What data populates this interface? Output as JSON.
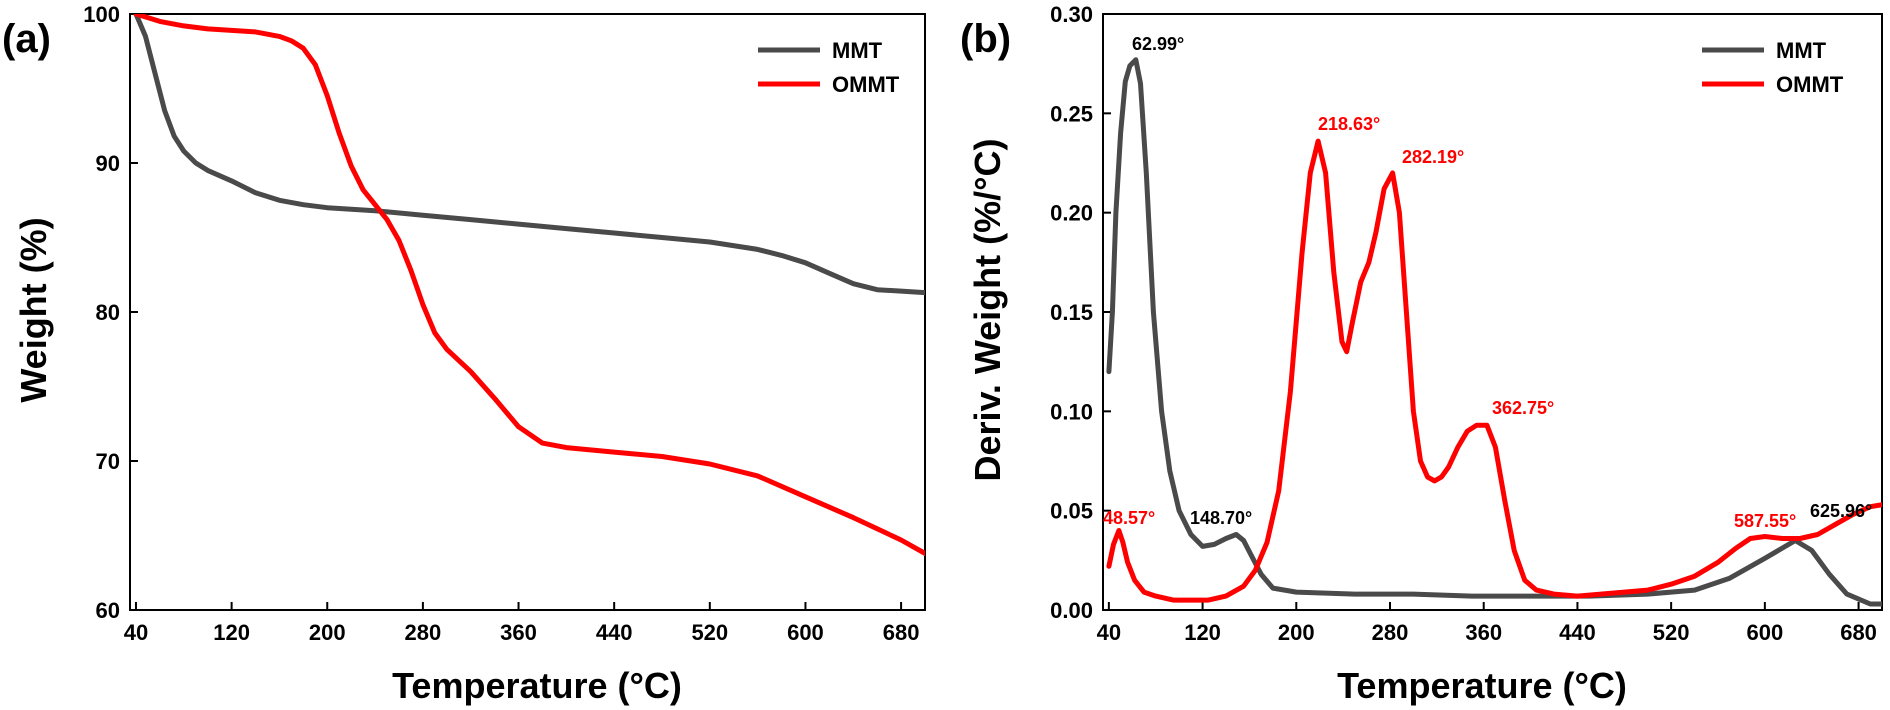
{
  "colors": {
    "MMT": "#4a4a4a",
    "OMMT": "#ff0000",
    "axis": "#000000"
  },
  "chart_data": [
    {
      "type": "line",
      "panel": "(a)",
      "title": "",
      "xlabel": "Temperature (°C)",
      "ylabel": "Weight (%)",
      "xlim": [
        35,
        700
      ],
      "ylim": [
        60,
        100
      ],
      "xticks": [
        40,
        120,
        200,
        280,
        360,
        440,
        520,
        600,
        680
      ],
      "yticks": [
        60,
        70,
        80,
        90,
        100
      ],
      "grid": false,
      "legend": "top-right",
      "series": [
        {
          "name": "MMT",
          "color": "#4a4a4a",
          "x": [
            40,
            48,
            56,
            64,
            72,
            80,
            90,
            100,
            120,
            140,
            160,
            180,
            200,
            240,
            280,
            320,
            360,
            400,
            440,
            480,
            520,
            560,
            580,
            600,
            620,
            640,
            660,
            680,
            700
          ],
          "y": [
            100,
            98.5,
            96,
            93.5,
            91.8,
            90.8,
            90.0,
            89.5,
            88.8,
            88.0,
            87.5,
            87.2,
            87.0,
            86.8,
            86.5,
            86.2,
            85.9,
            85.6,
            85.3,
            85.0,
            84.7,
            84.2,
            83.8,
            83.3,
            82.6,
            81.9,
            81.5,
            81.4,
            81.3
          ]
        },
        {
          "name": "OMMT",
          "color": "#ff0000",
          "x": [
            40,
            60,
            80,
            100,
            120,
            140,
            160,
            170,
            180,
            190,
            200,
            210,
            220,
            230,
            240,
            250,
            260,
            270,
            280,
            290,
            300,
            320,
            340,
            360,
            380,
            400,
            440,
            480,
            520,
            560,
            600,
            640,
            680,
            700
          ],
          "y": [
            100,
            99.5,
            99.2,
            99.0,
            98.9,
            98.8,
            98.5,
            98.2,
            97.7,
            96.6,
            94.5,
            92.0,
            89.8,
            88.2,
            87.2,
            86.2,
            84.8,
            82.8,
            80.5,
            78.6,
            77.5,
            76.0,
            74.2,
            72.3,
            71.2,
            70.9,
            70.6,
            70.3,
            69.8,
            69.0,
            67.6,
            66.2,
            64.7,
            63.8
          ]
        }
      ]
    },
    {
      "type": "line",
      "panel": "(b)",
      "title": "",
      "xlabel": "Temperature (°C)",
      "ylabel": "Deriv. Weight (%/°C)",
      "xlim": [
        35,
        700
      ],
      "ylim": [
        0,
        0.3
      ],
      "xticks": [
        40,
        120,
        200,
        280,
        360,
        440,
        520,
        600,
        680
      ],
      "yticks": [
        0.0,
        0.05,
        0.1,
        0.15,
        0.2,
        0.25,
        0.3
      ],
      "ytick_labels": [
        "0.00",
        "0.05",
        "0.10",
        "0.15",
        "0.20",
        "0.25",
        "0.30"
      ],
      "grid": false,
      "legend": "top-right",
      "series": [
        {
          "name": "MMT",
          "color": "#4a4a4a",
          "x": [
            40,
            43,
            46,
            50,
            54,
            58,
            62.99,
            67,
            72,
            78,
            85,
            92,
            100,
            110,
            120,
            130,
            140,
            148.7,
            155,
            162,
            170,
            180,
            200,
            250,
            300,
            350,
            400,
            450,
            500,
            540,
            570,
            600,
            625.96,
            640,
            655,
            670,
            690,
            700
          ],
          "y": [
            0.12,
            0.15,
            0.2,
            0.24,
            0.266,
            0.274,
            0.277,
            0.265,
            0.22,
            0.15,
            0.1,
            0.07,
            0.05,
            0.038,
            0.032,
            0.033,
            0.036,
            0.038,
            0.035,
            0.027,
            0.018,
            0.011,
            0.009,
            0.008,
            0.008,
            0.007,
            0.007,
            0.007,
            0.008,
            0.01,
            0.016,
            0.026,
            0.035,
            0.03,
            0.018,
            0.008,
            0.003,
            0.003
          ]
        },
        {
          "name": "OMMT",
          "color": "#ff0000",
          "x": [
            40,
            44,
            48.57,
            52,
            56,
            62,
            70,
            80,
            95,
            110,
            125,
            140,
            155,
            165,
            175,
            185,
            195,
            205,
            212,
            218.63,
            225,
            232,
            239,
            243,
            248,
            255,
            262,
            268,
            275,
            282.19,
            288,
            294,
            300,
            306,
            312,
            318,
            324,
            330,
            338,
            346,
            354,
            362.75,
            370,
            378,
            386,
            395,
            405,
            420,
            440,
            460,
            480,
            500,
            520,
            540,
            560,
            575,
            587.55,
            600,
            615,
            630,
            645,
            660,
            675,
            690,
            700
          ],
          "y": [
            0.022,
            0.033,
            0.04,
            0.034,
            0.024,
            0.015,
            0.009,
            0.007,
            0.005,
            0.005,
            0.005,
            0.007,
            0.012,
            0.02,
            0.034,
            0.06,
            0.11,
            0.18,
            0.22,
            0.236,
            0.22,
            0.17,
            0.135,
            0.13,
            0.145,
            0.165,
            0.175,
            0.19,
            0.212,
            0.22,
            0.2,
            0.15,
            0.1,
            0.075,
            0.067,
            0.065,
            0.067,
            0.072,
            0.082,
            0.09,
            0.093,
            0.093,
            0.082,
            0.055,
            0.03,
            0.015,
            0.01,
            0.008,
            0.007,
            0.008,
            0.009,
            0.01,
            0.013,
            0.017,
            0.024,
            0.031,
            0.036,
            0.037,
            0.036,
            0.036,
            0.038,
            0.043,
            0.048,
            0.052,
            0.053
          ]
        }
      ],
      "annotations": [
        {
          "text": "62.99°",
          "x": 62.99,
          "y": 0.277,
          "color": "#000000"
        },
        {
          "text": "148.70°",
          "x": 148.7,
          "y": 0.038,
          "color": "#000000"
        },
        {
          "text": "625.96°",
          "x": 625.96,
          "y": 0.035,
          "color": "#000000"
        },
        {
          "text": "48.57°",
          "x": 48.57,
          "y": 0.04,
          "color": "#ff0000"
        },
        {
          "text": "218.63°",
          "x": 218.63,
          "y": 0.236,
          "color": "#ff0000"
        },
        {
          "text": "282.19°",
          "x": 282.19,
          "y": 0.22,
          "color": "#ff0000"
        },
        {
          "text": "362.75°",
          "x": 362.75,
          "y": 0.093,
          "color": "#ff0000"
        },
        {
          "text": "587.55°",
          "x": 587.55,
          "y": 0.036,
          "color": "#ff0000"
        }
      ]
    }
  ]
}
